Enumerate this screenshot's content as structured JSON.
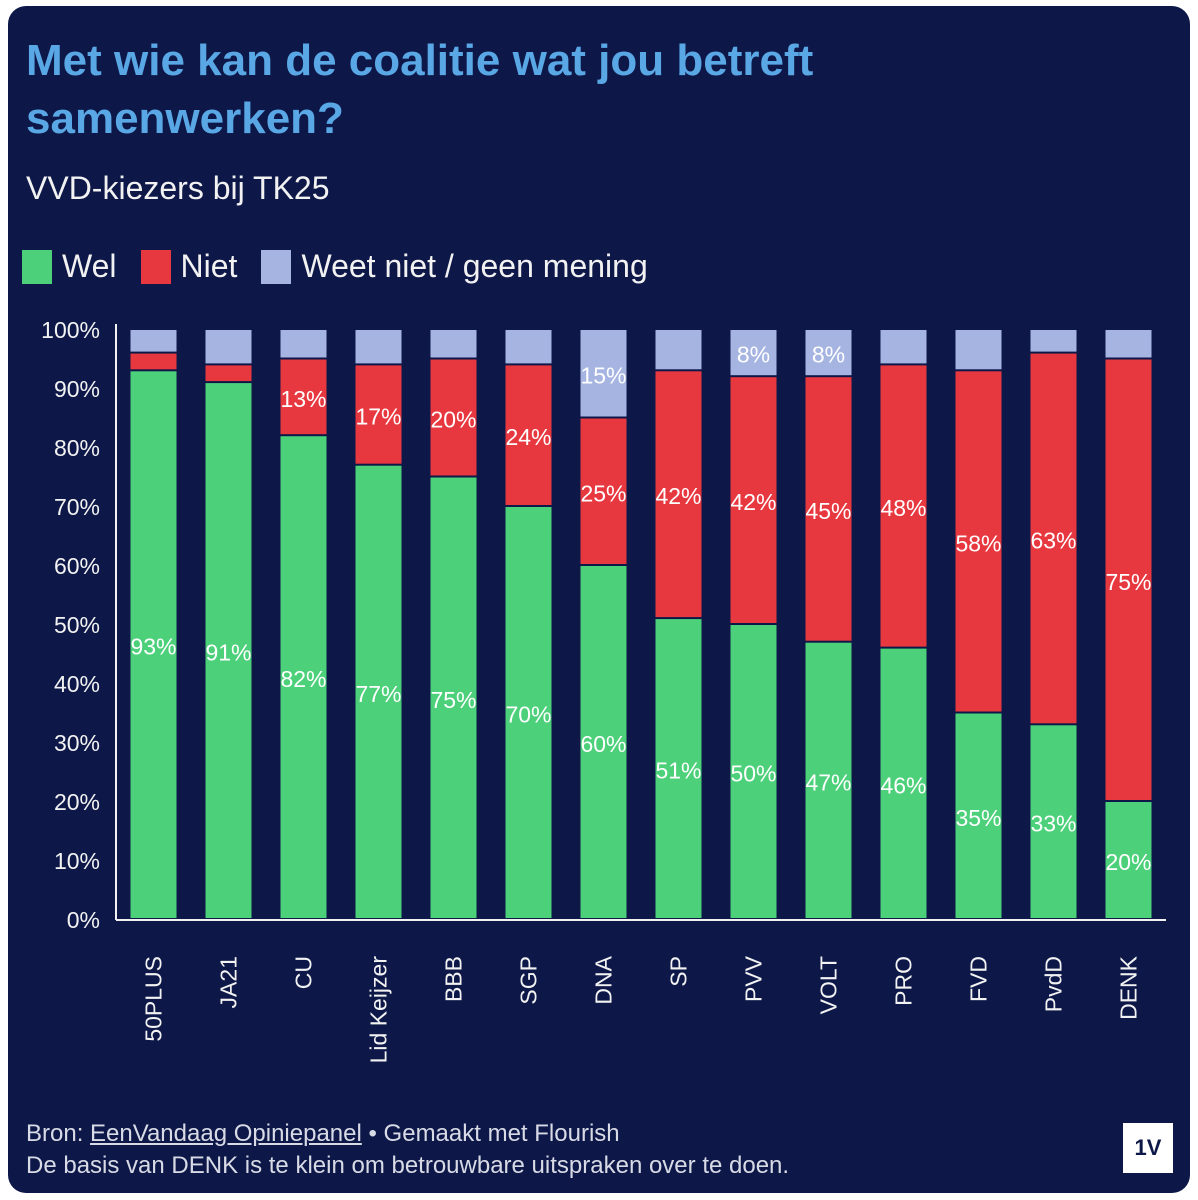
{
  "title": "Met wie kan de coalitie wat jou betreft samenwerken?",
  "subtitle": "VVD-kiezers bij TK25",
  "legend": [
    {
      "label": "Wel",
      "color": "#4cd07a"
    },
    {
      "label": "Niet",
      "color": "#e8383f"
    },
    {
      "label": "Weet niet / geen mening",
      "color": "#a6b4e2"
    }
  ],
  "footer": {
    "source_prefix": "Bron: ",
    "source_link": "EenVandaag Opiniepanel",
    "made_with": " • Gemaakt met Flourish",
    "note": "De basis van DENK is te klein om betrouwbare uitspraken over te doen."
  },
  "logo_text": "1V",
  "chart_data": {
    "type": "bar",
    "stacked": true,
    "categories": [
      "50PLUS",
      "JA21",
      "CU",
      "Lid Keijzer",
      "BBB",
      "SGP",
      "DNA",
      "SP",
      "PVV",
      "VOLT",
      "PRO",
      "FVD",
      "PvdD",
      "DENK"
    ],
    "series": [
      {
        "name": "Wel",
        "color": "#4cd07a",
        "values": [
          93,
          91,
          82,
          77,
          75,
          70,
          60,
          51,
          50,
          47,
          46,
          35,
          33,
          20
        ]
      },
      {
        "name": "Niet",
        "color": "#e8383f",
        "values": [
          3,
          3,
          13,
          17,
          20,
          24,
          25,
          42,
          42,
          45,
          48,
          58,
          63,
          75
        ]
      },
      {
        "name": "Weet niet / geen mening",
        "color": "#a6b4e2",
        "values": [
          4,
          6,
          5,
          6,
          5,
          6,
          15,
          7,
          8,
          8,
          6,
          7,
          4,
          5
        ]
      }
    ],
    "labels": {
      "Wel": [
        "93%",
        "91%",
        "82%",
        "77%",
        "75%",
        "70%",
        "60%",
        "51%",
        "50%",
        "47%",
        "46%",
        "35%",
        "33%",
        "20%"
      ],
      "Niet": [
        "",
        "",
        "13%",
        "17%",
        "20%",
        "24%",
        "25%",
        "42%",
        "42%",
        "45%",
        "48%",
        "58%",
        "63%",
        "75%"
      ],
      "Weet niet / geen mening": [
        "",
        "",
        "",
        "",
        "",
        "",
        "15%",
        "",
        "8%",
        "8%",
        "",
        "",
        "",
        ""
      ]
    },
    "yticks": [
      "0%",
      "10%",
      "20%",
      "30%",
      "40%",
      "50%",
      "60%",
      "70%",
      "80%",
      "90%",
      "100%"
    ],
    "ylim": [
      0,
      100
    ],
    "grid": false
  }
}
